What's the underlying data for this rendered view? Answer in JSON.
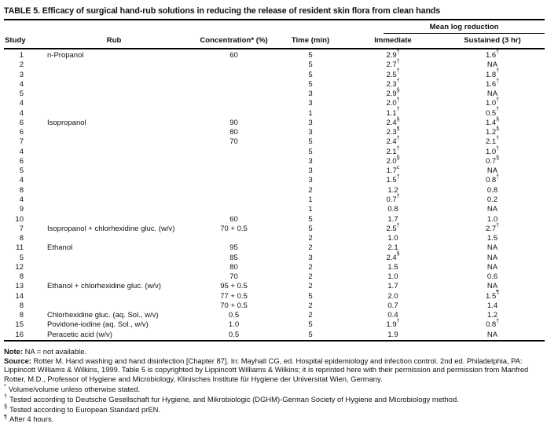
{
  "title": "TABLE 5. Efficacy of surgical hand-rub solutions in reducing the release of resident skin flora from clean hands",
  "table": {
    "group_header": "Mean log reduction",
    "headers": {
      "study": "Study",
      "rub": "Rub",
      "concentration": "Concentration* (%)",
      "time": "Time (min)",
      "immediate": "Immediate",
      "sustained": "Sustained (3 hr)"
    },
    "rows": [
      {
        "study": "1",
        "rub": "n-Propanol",
        "conc": "60",
        "time": "5",
        "imm": "2.9",
        "imm_sup": "†",
        "sus": "1.6",
        "sus_sup": "†"
      },
      {
        "study": "2",
        "rub": "",
        "conc": "",
        "time": "5",
        "imm": "2.7",
        "imm_sup": "†",
        "sus": "NA",
        "sus_sup": ""
      },
      {
        "study": "3",
        "rub": "",
        "conc": "",
        "time": "5",
        "imm": "2.5",
        "imm_sup": "†",
        "sus": "1.8",
        "sus_sup": "†"
      },
      {
        "study": "4",
        "rub": "",
        "conc": "",
        "time": "5",
        "imm": "2.3",
        "imm_sup": "†",
        "sus": "1.6",
        "sus_sup": "†"
      },
      {
        "study": "5",
        "rub": "",
        "conc": "",
        "time": "3",
        "imm": "2.9",
        "imm_sup": "§",
        "sus": "NA",
        "sus_sup": ""
      },
      {
        "study": "4",
        "rub": "",
        "conc": "",
        "time": "3",
        "imm": "2.0",
        "imm_sup": "†",
        "sus": "1.0",
        "sus_sup": "†"
      },
      {
        "study": "4",
        "rub": "",
        "conc": "",
        "time": "1",
        "imm": "1.1",
        "imm_sup": "†",
        "sus": "0.5",
        "sus_sup": "†"
      },
      {
        "study": "6",
        "rub": "Isopropanol",
        "conc": "90",
        "time": "3",
        "imm": "2.4",
        "imm_sup": "§",
        "sus": "1.4",
        "sus_sup": "§"
      },
      {
        "study": "6",
        "rub": "",
        "conc": "80",
        "time": "3",
        "imm": "2.3",
        "imm_sup": "§",
        "sus": "1.2",
        "sus_sup": "§"
      },
      {
        "study": "7",
        "rub": "",
        "conc": "70",
        "time": "5",
        "imm": "2.4",
        "imm_sup": "†",
        "sus": "2.1",
        "sus_sup": "†"
      },
      {
        "study": "4",
        "rub": "",
        "conc": "",
        "time": "5",
        "imm": "2.1",
        "imm_sup": "†",
        "sus": "1.0",
        "sus_sup": "†"
      },
      {
        "study": "6",
        "rub": "",
        "conc": "",
        "time": "3",
        "imm": "2.0",
        "imm_sup": "§",
        "sus": "0.7",
        "sus_sup": "§"
      },
      {
        "study": "5",
        "rub": "",
        "conc": "",
        "time": "3",
        "imm": "1.7",
        "imm_sup": "c",
        "sus": "NA",
        "sus_sup": ""
      },
      {
        "study": "4",
        "rub": "",
        "conc": "",
        "time": "3",
        "imm": "1.5",
        "imm_sup": "†",
        "sus": "0.8",
        "sus_sup": "†"
      },
      {
        "study": "8",
        "rub": "",
        "conc": "",
        "time": "2",
        "imm": "1.2",
        "imm_sup": "",
        "sus": "0.8",
        "sus_sup": ""
      },
      {
        "study": "4",
        "rub": "",
        "conc": "",
        "time": "1",
        "imm": "0.7",
        "imm_sup": "†",
        "sus": "0.2",
        "sus_sup": ""
      },
      {
        "study": "9",
        "rub": "",
        "conc": "",
        "time": "1",
        "imm": "0.8",
        "imm_sup": "",
        "sus": "NA",
        "sus_sup": ""
      },
      {
        "study": "10",
        "rub": "",
        "conc": "60",
        "time": "5",
        "imm": "1.7",
        "imm_sup": "",
        "sus": "1.0",
        "sus_sup": ""
      },
      {
        "study": "7",
        "rub": "Isopropanol + chlorhexidine gluc. (w/v)",
        "conc": "70 + 0.5",
        "time": "5",
        "imm": "2.5",
        "imm_sup": "†",
        "sus": "2.7",
        "sus_sup": "†"
      },
      {
        "study": "8",
        "rub": "",
        "conc": "",
        "time": "2",
        "imm": "1.0",
        "imm_sup": "",
        "sus": "1.5",
        "sus_sup": ""
      },
      {
        "study": "11",
        "rub": "Ethanol",
        "conc": "95",
        "time": "2",
        "imm": "2.1",
        "imm_sup": "",
        "sus": "NA",
        "sus_sup": ""
      },
      {
        "study": "5",
        "rub": "",
        "conc": "85",
        "time": "3",
        "imm": "2.4",
        "imm_sup": "§",
        "sus": "NA",
        "sus_sup": ""
      },
      {
        "study": "12",
        "rub": "",
        "conc": "80",
        "time": "2",
        "imm": "1.5",
        "imm_sup": "",
        "sus": "NA",
        "sus_sup": ""
      },
      {
        "study": "8",
        "rub": "",
        "conc": "70",
        "time": "2",
        "imm": "1.0",
        "imm_sup": "",
        "sus": "0.6",
        "sus_sup": ""
      },
      {
        "study": "13",
        "rub": "Ethanol + chlorhexidine gluc. (w/v)",
        "conc": "95 + 0.5",
        "time": "2",
        "imm": "1.7",
        "imm_sup": "",
        "sus": "NA",
        "sus_sup": ""
      },
      {
        "study": "14",
        "rub": "",
        "conc": "77 + 0.5",
        "time": "5",
        "imm": "2.0",
        "imm_sup": "",
        "sus": "1.5",
        "sus_sup": "¶"
      },
      {
        "study": "8",
        "rub": "",
        "conc": "70 + 0.5",
        "time": "2",
        "imm": "0.7",
        "imm_sup": "",
        "sus": "1.4",
        "sus_sup": ""
      },
      {
        "study": "8",
        "rub": "Chlorhexidine gluc. (aq. Sol., w/v)",
        "conc": "0.5",
        "time": "2",
        "imm": "0.4",
        "imm_sup": "",
        "sus": "1.2",
        "sus_sup": ""
      },
      {
        "study": "15",
        "rub": "Povidone-iodine (aq. Sol., w/v)",
        "conc": "1.0",
        "time": "5",
        "imm": "1.9",
        "imm_sup": "†",
        "sus": "0.8",
        "sus_sup": "†"
      },
      {
        "study": "16",
        "rub": "Peracetic acid (w/v)",
        "conc": "0.5",
        "time": "5",
        "imm": "1.9",
        "imm_sup": "",
        "sus": "NA",
        "sus_sup": ""
      }
    ]
  },
  "notes": {
    "note_label": "Note:",
    "note_text": "NA = not available.",
    "source_label": "Source:",
    "source_text": "Rotter M. Hand washing and hand disinfection [Chapter 87]. In: Mayhall CG, ed. Hospital epidemiology and infection control. 2nd ed. Philadelphia, PA: Lippincott Williams & Wilkins, 1999. Table 5 is copyrighted by Lippincott Williams & Wilkins; it is reprinted here with their permission and permission from Manfred Rotter, M.D., Professor of Hygiene and Microbiology, Klinisches Institute für Hygiene der Universitat Wien, Germany.",
    "footnotes": [
      {
        "symbol": "*",
        "text": "Volume/volume unless otherwise stated."
      },
      {
        "symbol": "†",
        "text": "Tested according to Deutsche Gesellschaft fur Hygiene, and Mikrobiologic (DGHM)-German Society of Hygiene and Microbiology method."
      },
      {
        "symbol": "§",
        "text": "Tested according to European Standard prEN."
      },
      {
        "symbol": "¶",
        "text": "After 4 hours."
      }
    ]
  }
}
